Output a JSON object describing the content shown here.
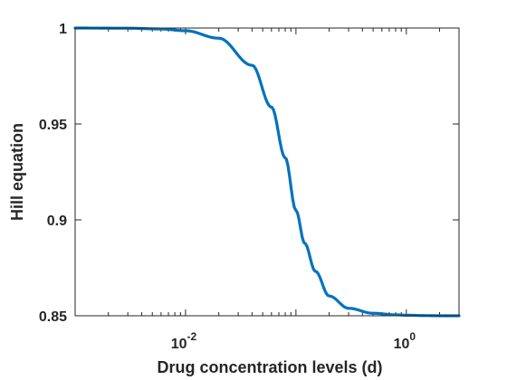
{
  "chart_data": {
    "type": "line",
    "title": "",
    "xlabel": "Drug concentration levels (d)",
    "ylabel": "Hill equation",
    "x_scale": "log",
    "xlim": [
      0.001,
      3.0
    ],
    "ylim": [
      0.85,
      1.0
    ],
    "grid": false,
    "legend": "none",
    "x_ticks": [
      {
        "value": 0.01,
        "base": "10",
        "exponent": "-2"
      },
      {
        "value": 1,
        "base": "10",
        "exponent": "0"
      }
    ],
    "y_ticks": [
      {
        "value": 0.85,
        "label": "0.85"
      },
      {
        "value": 0.9,
        "label": "0.9"
      },
      {
        "value": 0.95,
        "label": "0.95"
      },
      {
        "value": 1.0,
        "label": "1"
      }
    ],
    "series": [
      {
        "color": "#0072bd",
        "x": [
          0.001,
          0.003,
          0.006,
          0.01,
          0.02,
          0.04,
          0.06,
          0.08,
          0.1,
          0.12,
          0.15,
          0.2,
          0.3,
          0.5,
          0.8,
          1.0,
          1.5,
          2.0,
          3.0
        ],
        "y": [
          1.0,
          0.9999,
          0.9995,
          0.9986,
          0.9947,
          0.9806,
          0.9588,
          0.9324,
          0.905,
          0.8878,
          0.8732,
          0.8603,
          0.8539,
          0.8513,
          0.8505,
          0.8503,
          0.8501,
          0.85,
          0.85
        ]
      }
    ]
  }
}
